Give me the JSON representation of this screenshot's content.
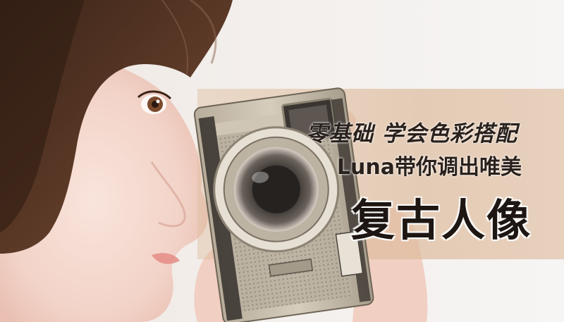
{
  "banner": {
    "subtitle_line1": "零基础 学会色彩搭配",
    "subtitle_line2": "Luna带你调出唯美",
    "title": "复古人像"
  },
  "colors": {
    "hair": "#4a2e20",
    "skin": "#f4d9cf",
    "band": "#dcbd9f",
    "camera_body": "#c9bfae",
    "text_dark": "#1e1612"
  }
}
